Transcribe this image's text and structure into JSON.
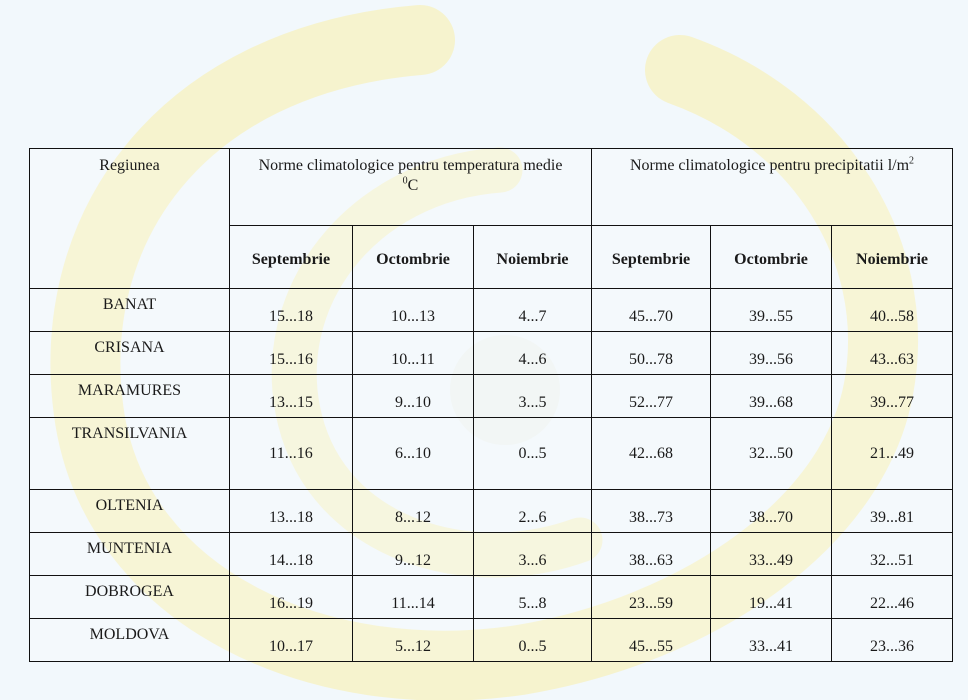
{
  "table": {
    "region_header": "Regiunea",
    "temperature_group": {
      "text": "Norme climatologice pentru temperatura medie",
      "unit_sup": "0",
      "unit": "C"
    },
    "precipitation_group": {
      "text": "Norme climatologice pentru precipitatii l/m",
      "unit_sup": "2"
    },
    "months": [
      "Septembrie",
      "Octombrie",
      "Noiembrie",
      "Septembrie",
      "Octombrie",
      "Noiembrie"
    ],
    "rows": [
      {
        "region": "BANAT",
        "values": [
          "15...18",
          "10...13",
          "4...7",
          "45...70",
          "39...55",
          "40...58"
        ]
      },
      {
        "region": "CRISANA",
        "values": [
          "15...16",
          "10...11",
          "4...6",
          "50...78",
          "39...56",
          "43...63"
        ]
      },
      {
        "region": "MARAMURES",
        "values": [
          "13...15",
          "9...10",
          "3...5",
          "52...77",
          "39...68",
          "39...77"
        ]
      },
      {
        "region": "TRANSILVANIA",
        "values": [
          "11...16",
          "6...10",
          "0...5",
          "42...68",
          "32...50",
          "21...49"
        ]
      },
      {
        "region": "OLTENIA",
        "values": [
          "13...18",
          "8...12",
          "2...6",
          "38...73",
          "38...70",
          "39...81"
        ]
      },
      {
        "region": "MUNTENIA",
        "values": [
          "14...18",
          "9...12",
          "3...6",
          "38...63",
          "33...49",
          "32...51"
        ]
      },
      {
        "region": "DOBROGEA",
        "values": [
          "16...19",
          "11...14",
          "5...8",
          "23...59",
          "19...41",
          "22...46"
        ]
      },
      {
        "region": "MOLDOVA",
        "values": [
          "10...17",
          "5...12",
          "0...5",
          "45...55",
          "33...41",
          "23...36"
        ]
      }
    ]
  },
  "colors": {
    "background": "#f2f8fc",
    "watermark": "#f8f3c4",
    "border": "#111111"
  }
}
